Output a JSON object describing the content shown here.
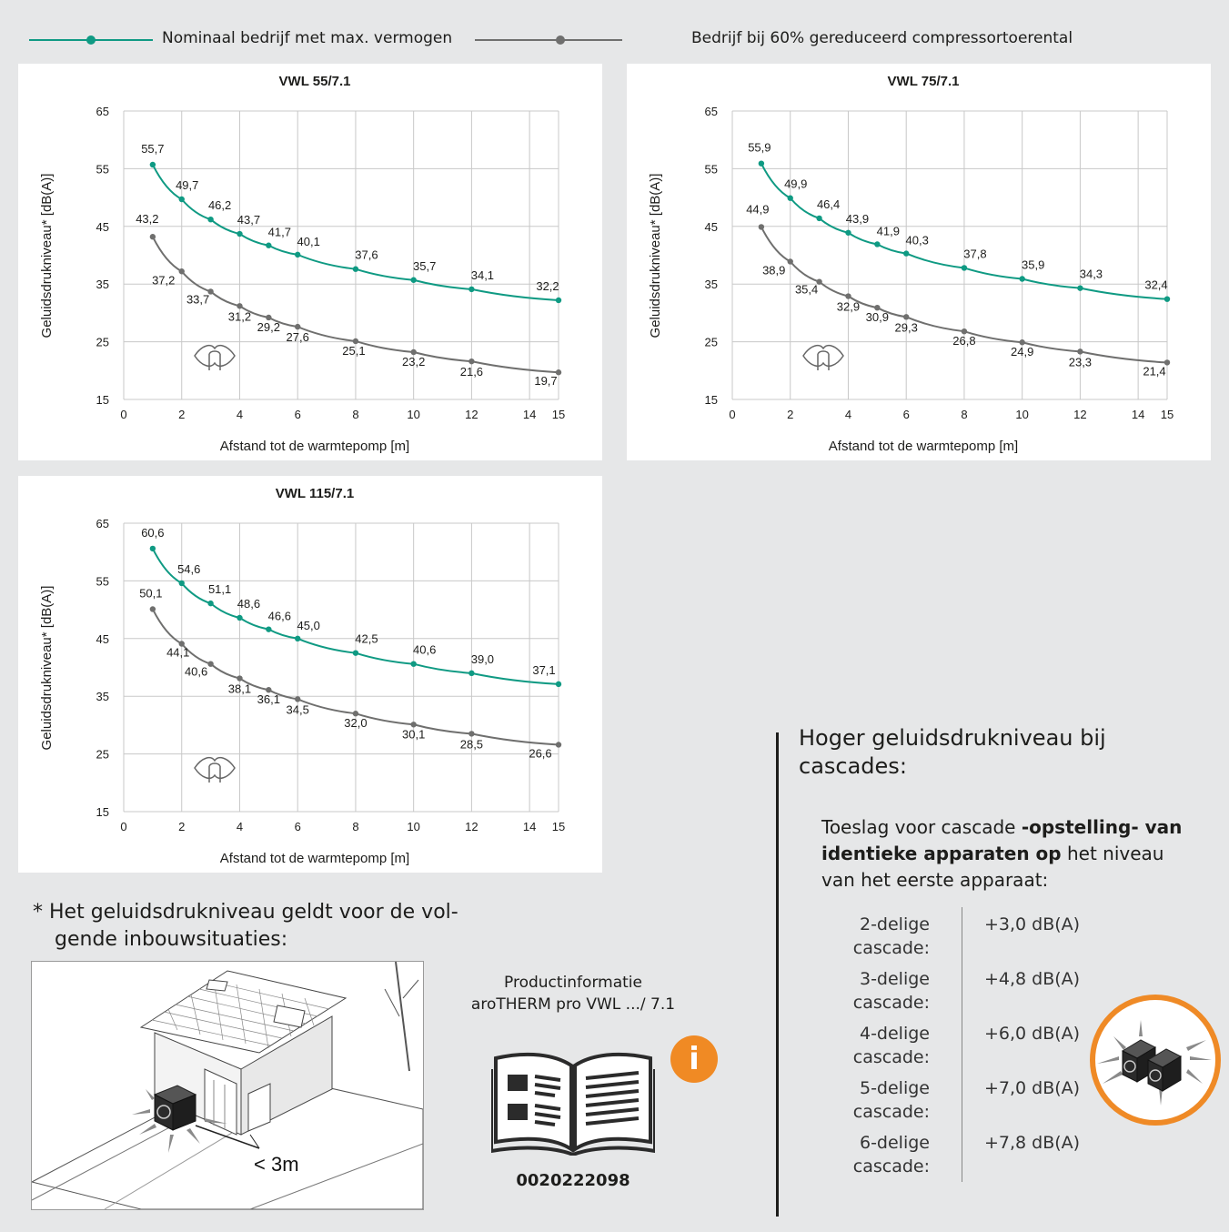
{
  "legend": {
    "nominal_label": "Nominaal bedrijf met max. vermogen",
    "reduced_label": "Bedrijf bij 60% gereduceerd compressortoerental",
    "nominal_color": "#0f9a83",
    "reduced_color": "#6f6f6e"
  },
  "chart_data": [
    {
      "type": "line",
      "title": "VWL 55/7.1",
      "xlabel": "Afstand tot de warmtepomp [m]",
      "ylabel": "Geluidsdrukniveau* [dB(A)]",
      "x_ticks": [
        0,
        2,
        4,
        6,
        8,
        10,
        12,
        14,
        15
      ],
      "y_ticks": [
        15,
        25,
        35,
        45,
        55,
        65
      ],
      "xlim": [
        0,
        15
      ],
      "ylim": [
        15,
        65
      ],
      "grid": true,
      "x": [
        1,
        2,
        3,
        4,
        5,
        6,
        8,
        10,
        12,
        15
      ],
      "series": [
        {
          "name": "Nominaal bedrijf met max. vermogen",
          "values": [
            55.7,
            49.7,
            46.2,
            43.7,
            41.7,
            40.1,
            37.6,
            35.7,
            34.1,
            32.2
          ],
          "labels": [
            "55,7",
            "49,7",
            "46,2",
            "43,7",
            "41,7",
            "40,1",
            "37,6",
            "35,7",
            "34,1",
            "32,2"
          ]
        },
        {
          "name": "Bedrijf bij 60% gereduceerd compressortoerental",
          "values": [
            43.2,
            37.2,
            33.7,
            31.2,
            29.2,
            27.6,
            25.1,
            23.2,
            21.6,
            19.7
          ],
          "labels": [
            "43,2",
            "37,2",
            "33,7",
            "31,2",
            "29,2",
            "27,6",
            "25,1",
            "23,2",
            "21,6",
            "19,7"
          ]
        }
      ]
    },
    {
      "type": "line",
      "title": "VWL 75/7.1",
      "xlabel": "Afstand tot de warmtepomp [m]",
      "ylabel": "Geluidsdrukniveau* [dB(A)]",
      "x_ticks": [
        0,
        2,
        4,
        6,
        8,
        10,
        12,
        14,
        15
      ],
      "y_ticks": [
        15,
        25,
        35,
        45,
        55,
        65
      ],
      "xlim": [
        0,
        15
      ],
      "ylim": [
        15,
        65
      ],
      "grid": true,
      "x": [
        1,
        2,
        3,
        4,
        5,
        6,
        8,
        10,
        12,
        15
      ],
      "series": [
        {
          "name": "Nominaal bedrijf met max. vermogen",
          "values": [
            55.9,
            49.9,
            46.4,
            43.9,
            41.9,
            40.3,
            37.8,
            35.9,
            34.3,
            32.4
          ],
          "labels": [
            "55,9",
            "49,9",
            "46,4",
            "43,9",
            "41,9",
            "40,3",
            "37,8",
            "35,9",
            "34,3",
            "32,4"
          ]
        },
        {
          "name": "Bedrijf bij 60% gereduceerd compressortoerental",
          "values": [
            44.9,
            38.9,
            35.4,
            32.9,
            30.9,
            29.3,
            26.8,
            24.9,
            23.3,
            21.4
          ],
          "labels": [
            "44,9",
            "38,9",
            "35,4",
            "32,9",
            "30,9",
            "29,3",
            "26,8",
            "24,9",
            "23,3",
            "21,4"
          ]
        }
      ]
    },
    {
      "type": "line",
      "title": "VWL 115/7.1",
      "xlabel": "Afstand tot de warmtepomp [m]",
      "ylabel": "Geluidsdrukniveau* [dB(A)]",
      "x_ticks": [
        0,
        2,
        4,
        6,
        8,
        10,
        12,
        14,
        15
      ],
      "y_ticks": [
        15,
        25,
        35,
        45,
        55,
        65
      ],
      "xlim": [
        0,
        15
      ],
      "ylim": [
        15,
        65
      ],
      "grid": true,
      "x": [
        1,
        2,
        3,
        4,
        5,
        6,
        8,
        10,
        12,
        15
      ],
      "series": [
        {
          "name": "Nominaal bedrijf met max. vermogen",
          "values": [
            60.6,
            54.6,
            51.1,
            48.6,
            46.6,
            45.0,
            42.5,
            40.6,
            39.0,
            37.1
          ],
          "labels": [
            "60,6",
            "54,6",
            "51,1",
            "48,6",
            "46,6",
            "45,0",
            "42,5",
            "40,6",
            "39,0",
            "37,1"
          ]
        },
        {
          "name": "Bedrijf bij 60% gereduceerd compressortoerental",
          "values": [
            50.1,
            44.1,
            40.6,
            38.1,
            36.1,
            34.5,
            32.0,
            30.1,
            28.5,
            26.6
          ],
          "labels": [
            "50,1",
            "44,1",
            "40,6",
            "38,1",
            "36,1",
            "34,5",
            "32,0",
            "30,1",
            "28,5",
            "26,6"
          ]
        }
      ]
    }
  ],
  "note": {
    "text_line1": "* Het geluidsdrukniveau geldt voor de vol-",
    "text_line2": "gende inbouwsituaties:",
    "distance_label": "< 3m"
  },
  "product": {
    "line1": "Productinformatie",
    "line2": "aroTHERM pro VWL .../ 7.1",
    "number": "0020222098",
    "info_icon": "i"
  },
  "cascade": {
    "title": "Hoger geluidsdrukniveau bij cascades:",
    "desc_part1": "Toeslag voor cascade ",
    "desc_bold": "-opstelling- van identieke apparaten op",
    "desc_part2": " het niveau van het eerste apparaat:",
    "rows": [
      {
        "label_1": "2-delige",
        "label_2": "cascade:",
        "value": "+3,0 dB(A)"
      },
      {
        "label_1": "3-delige",
        "label_2": "cascade:",
        "value": "+4,8 dB(A)"
      },
      {
        "label_1": "4-delige",
        "label_2": "cascade:",
        "value": "+6,0 dB(A)"
      },
      {
        "label_1": "5-delige",
        "label_2": "cascade:",
        "value": "+7,0 dB(A)"
      },
      {
        "label_1": "6-delige",
        "label_2": "cascade:",
        "value": "+7,8 dB(A)"
      }
    ]
  },
  "colors": {
    "background": "#e6e7e8",
    "orange_accent": "#ef8a26"
  }
}
